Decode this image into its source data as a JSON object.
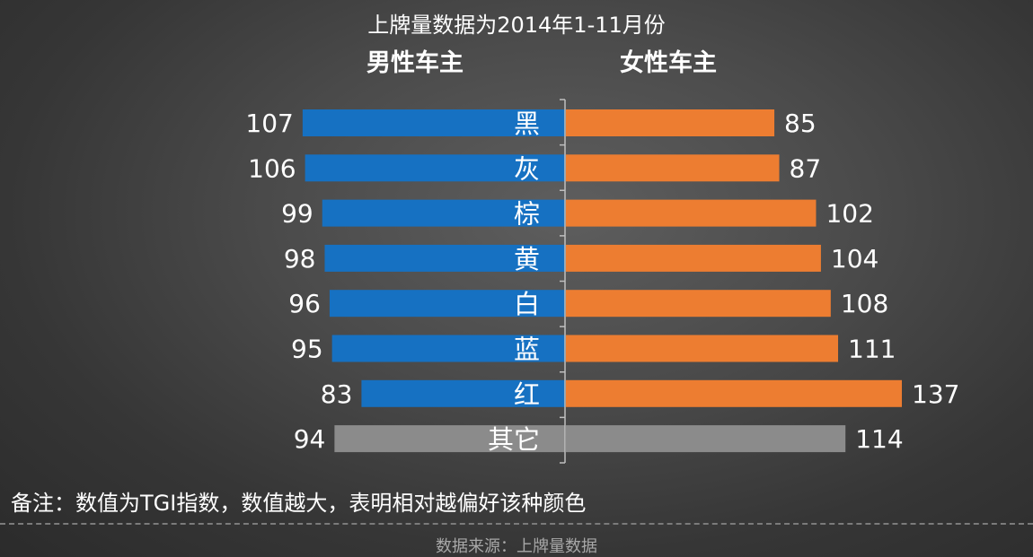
{
  "subtitle": "上牌量数据为2014年1-11月份",
  "note": "备注：数值为TGI指数，数值越大，表明相对越偏好该种颜色",
  "source": "数据来源：上牌量数据",
  "colors": {
    "male": "#1671c2",
    "female": "#ed7d31",
    "other": "#8b8b8b",
    "axis": "#bfbfbf"
  },
  "chart_data": {
    "type": "bar",
    "orientation": "horizontal-butterfly",
    "categories": [
      "黑",
      "灰",
      "棕",
      "黄",
      "白",
      "蓝",
      "红",
      "其它"
    ],
    "series": [
      {
        "name": "男性车主",
        "values": [
          107,
          106,
          99,
          98,
          96,
          95,
          83,
          94
        ]
      },
      {
        "name": "女性车主",
        "values": [
          85,
          87,
          102,
          104,
          108,
          111,
          137,
          114
        ]
      }
    ],
    "highlight_other_category": "其它",
    "grid": false,
    "legend": "top"
  }
}
